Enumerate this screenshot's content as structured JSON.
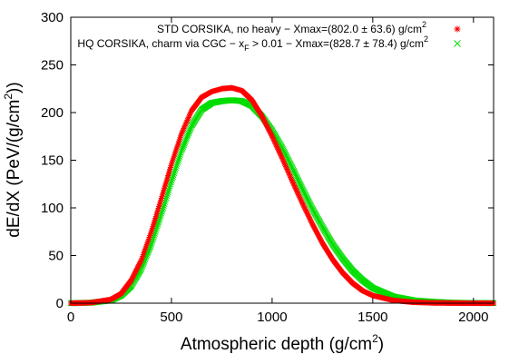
{
  "chart_data": {
    "type": "scatter",
    "xlabel": {
      "main": "Atmospheric depth (g/cm",
      "sup": "2",
      "tail": ")"
    },
    "ylabel": {
      "main": "dE/dX (PeV/(g/cm",
      "sup": "2",
      "tail": "))"
    },
    "xlim": [
      0,
      2100
    ],
    "ylim": [
      0,
      300
    ],
    "xticks": [
      "0",
      "500",
      "1000",
      "1500",
      "2000"
    ],
    "xtick_values": [
      0,
      500,
      1000,
      1500,
      2000
    ],
    "yticks": [
      "0",
      "50",
      "100",
      "150",
      "200",
      "250",
      "300"
    ],
    "ytick_values": [
      0,
      50,
      100,
      150,
      200,
      250,
      300
    ],
    "grid": false,
    "legend_position": "top-right",
    "series": [
      {
        "name": "STD CORSIKA, no heavy − Xmax=(802.0 ± 63.6) g/cm",
        "name_sup": "2",
        "marker": "*",
        "color": "#ff0000",
        "x": [
          0,
          100,
          200,
          250,
          300,
          350,
          400,
          450,
          500,
          550,
          600,
          650,
          700,
          750,
          800,
          850,
          900,
          950,
          1000,
          1050,
          1100,
          1150,
          1200,
          1250,
          1300,
          1350,
          1400,
          1450,
          1500,
          1600,
          1700,
          1800,
          1900,
          2000,
          2100
        ],
        "y": [
          0,
          0.5,
          4,
          10,
          24,
          45,
          75,
          110,
          146,
          178,
          202,
          216,
          222,
          225,
          226,
          223,
          213,
          196,
          175,
          152,
          128,
          105,
          83,
          63,
          46,
          32,
          21,
          13,
          8,
          3,
          1,
          0.3,
          0.1,
          0,
          0
        ]
      },
      {
        "name": "HQ CORSIKA, charm via CGC − x",
        "name_sub": "F",
        "name_tail": " > 0.01 − Xmax=(828.7 ± 78.4) g/cm",
        "name_sup": "2",
        "marker": "x",
        "color": "#00dd00",
        "x": [
          0,
          100,
          200,
          250,
          300,
          350,
          400,
          450,
          500,
          550,
          600,
          650,
          700,
          750,
          800,
          850,
          900,
          950,
          1000,
          1050,
          1100,
          1150,
          1200,
          1250,
          1300,
          1350,
          1400,
          1450,
          1500,
          1600,
          1700,
          1800,
          1900,
          2000,
          2100
        ],
        "y": [
          0,
          0.5,
          3,
          8,
          18,
          36,
          62,
          94,
          128,
          160,
          186,
          203,
          210,
          212,
          213,
          212,
          207,
          196,
          181,
          163,
          142,
          120,
          99,
          80,
          62,
          47,
          34,
          24,
          16,
          7,
          3,
          1.5,
          0.5,
          0.2,
          0.1
        ]
      }
    ]
  }
}
